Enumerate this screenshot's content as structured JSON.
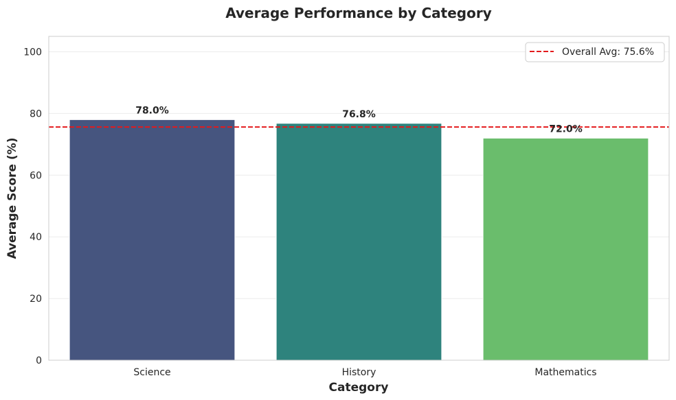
{
  "chart_data": {
    "type": "bar",
    "title": "Average Performance by Category",
    "xlabel": "Category",
    "ylabel": "Average Score (%)",
    "categories": [
      "Science",
      "History",
      "Mathematics"
    ],
    "values": [
      78.0,
      76.8,
      72.0
    ],
    "value_labels": [
      "78.0%",
      "76.8%",
      "72.0%"
    ],
    "colors": [
      "#46557f",
      "#2e837d",
      "#6abd6c"
    ],
    "ylim": [
      0,
      105
    ],
    "yticks": [
      0,
      20,
      40,
      60,
      80,
      100
    ],
    "ytick_labels": [
      "0",
      "20",
      "40",
      "60",
      "80",
      "100"
    ],
    "reference_line": {
      "value": 75.6,
      "label": "Overall Avg: 75.6%",
      "color": "#e31a1c",
      "style": "dashed"
    },
    "grid": true,
    "legend_position": "top-right"
  }
}
